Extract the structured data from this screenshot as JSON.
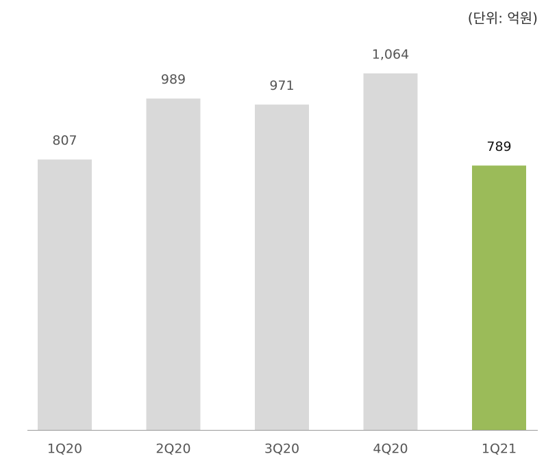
{
  "chart_data": {
    "type": "bar",
    "annotation": "(단위: 억원)",
    "categories": [
      "1Q20",
      "2Q20",
      "3Q20",
      "4Q20",
      "1Q21"
    ],
    "values": [
      807,
      989,
      971,
      1064,
      789
    ],
    "value_labels": [
      "807",
      "989",
      "971",
      "1,064",
      "789"
    ],
    "colors": [
      "#d9d9d9",
      "#d9d9d9",
      "#d9d9d9",
      "#d9d9d9",
      "#9bbb59"
    ]
  }
}
